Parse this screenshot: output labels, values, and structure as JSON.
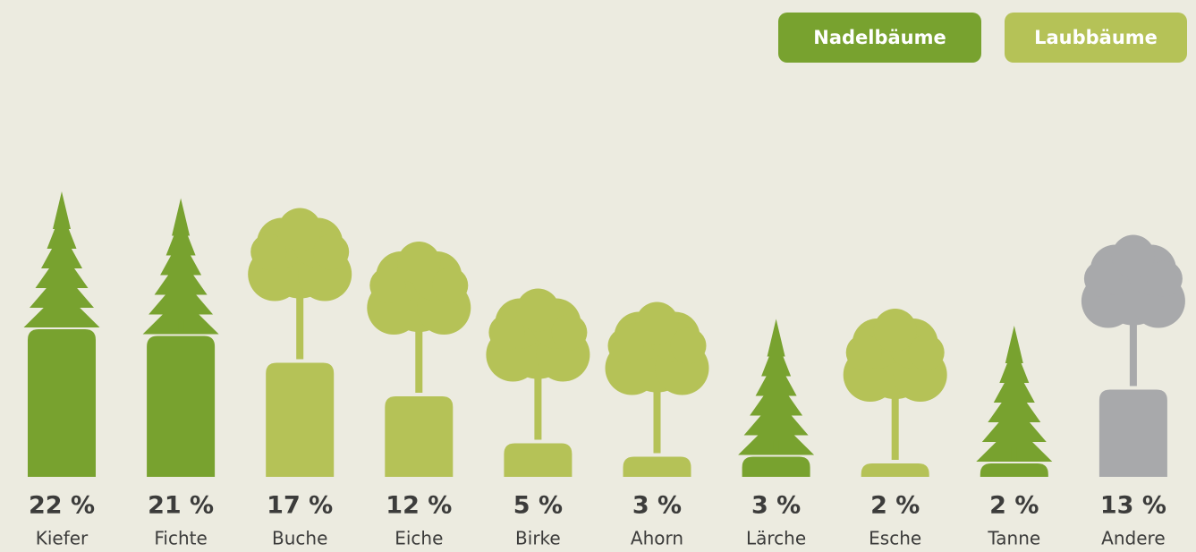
{
  "chart_data": {
    "type": "bar",
    "categories": [
      "Kiefer",
      "Fichte",
      "Buche",
      "Eiche",
      "Birke",
      "Ahorn",
      "Lärche",
      "Esche",
      "Tanne",
      "Andere"
    ],
    "values": [
      22,
      21,
      17,
      12,
      5,
      3,
      3,
      2,
      2,
      13
    ],
    "value_labels": [
      "22 %",
      "21 %",
      "17 %",
      "12 %",
      "5 %",
      "3 %",
      "3 %",
      "2 %",
      "2 %",
      "13 %"
    ],
    "colors": [
      "#78a22f",
      "#78a22f",
      "#b5c257",
      "#b5c257",
      "#b5c257",
      "#b5c257",
      "#78a22f",
      "#b5c257",
      "#78a22f",
      "#a8a9ab"
    ],
    "legend": [
      {
        "name": "Nadelbäume",
        "color": "#78a22f"
      },
      {
        "name": "Laubbäume",
        "color": "#b5c257"
      }
    ]
  }
}
